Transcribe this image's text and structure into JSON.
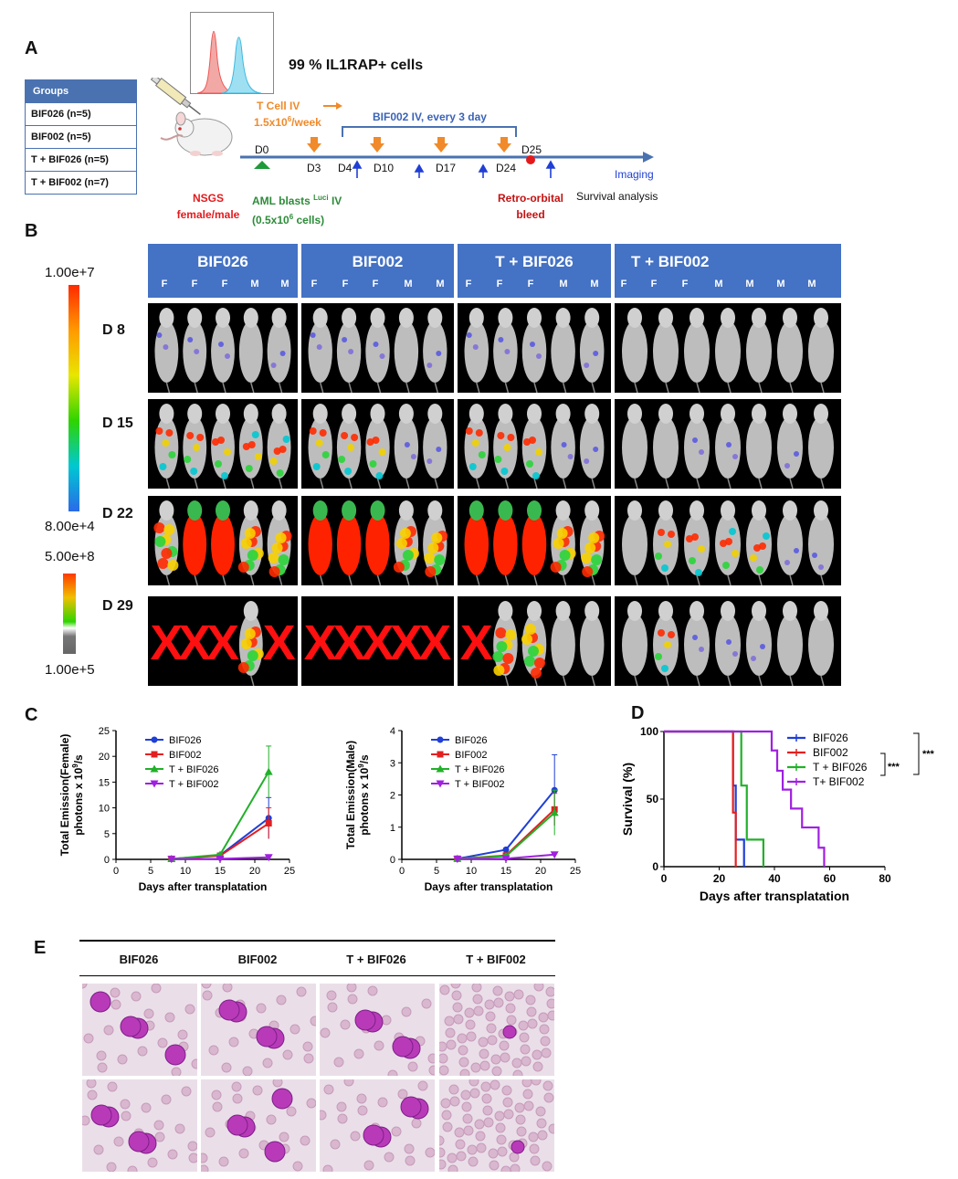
{
  "panels": {
    "a": "A",
    "b": "B",
    "c": "C",
    "d": "D",
    "e": "E"
  },
  "panel_a": {
    "il1rap_text": "99 % IL1RAP+ cells",
    "groups_header": "Groups",
    "groups": [
      "BIF026 (n=5)",
      "BIF002 (n=5)",
      "T + BIF026 (n=5)",
      "T +  BIF002 (n=7)"
    ],
    "tcell_label": "T Cell IV",
    "tcell_dose": "1.5x10",
    "tcell_dose_exp": "6",
    "tcell_dose_unit": "/week",
    "bif_label": "BIF002 IV, every 3 day",
    "days": [
      "D0",
      "D3",
      "D4",
      "D10",
      "D17",
      "D24",
      "D25"
    ],
    "imaging": "Imaging",
    "nsgs_1": "NSGS",
    "nsgs_2": "female/male",
    "aml_1": "AML blasts",
    "aml_sup": "Luci",
    "aml_1b": "IV",
    "aml_2": "(0.5x10",
    "aml_2_sup": "6",
    "aml_2b": " cells)",
    "retro_1": "Retro-orbital",
    "retro_2": "bleed",
    "survival": "Survival analysis",
    "colors": {
      "orange": "#f08a2a",
      "blue": "#3a63b8",
      "red": "#e31a1c",
      "green": "#2e8b3a"
    }
  },
  "panel_b": {
    "scale1_top": "1.00e+7",
    "scale1_bottom": "8.00e+4",
    "scale2_top": "5.00e+8",
    "scale2_bottom": "1.00e+5",
    "groups": [
      {
        "name": "BIF026",
        "sexes": [
          "F",
          "F",
          "F",
          "M",
          "M"
        ]
      },
      {
        "name": "BIF002",
        "sexes": [
          "F",
          "F",
          "F",
          "M",
          "M"
        ]
      },
      {
        "name": "T + BIF026",
        "sexes": [
          "F",
          "F",
          "F",
          "M",
          "M"
        ]
      },
      {
        "name": "T + BIF002",
        "sexes": [
          "F",
          "F",
          "F",
          "M",
          "M",
          "M",
          "M"
        ]
      }
    ],
    "rows": [
      "D 8",
      "D 15",
      "D 22",
      "D 29"
    ],
    "dead_mark": "X"
  },
  "chart_data": [
    {
      "type": "line",
      "title": "",
      "xlabel": "Days after transplatation",
      "ylabel_1": "Total Emission(Female)",
      "ylabel_2": "photons x 10",
      "ylabel_sup": "9",
      "ylabel_3": "/s",
      "xlim": [
        0,
        25
      ],
      "ylim": [
        0,
        25
      ],
      "xticks": [
        0,
        5,
        10,
        15,
        20,
        25
      ],
      "yticks": [
        0,
        5,
        10,
        15,
        20,
        25
      ],
      "x": [
        8,
        15,
        22
      ],
      "series": [
        {
          "name": "BIF026",
          "color": "#1f3fd6",
          "marker": "circle",
          "values": [
            0.1,
            0.8,
            8.0
          ],
          "err": [
            0.1,
            0.3,
            4.0
          ]
        },
        {
          "name": "BIF002",
          "color": "#e32020",
          "marker": "square",
          "values": [
            0.1,
            0.7,
            7.0
          ],
          "err": [
            0.1,
            0.3,
            3.0
          ]
        },
        {
          "name": "T + BIF026",
          "color": "#22b02a",
          "marker": "triangle",
          "values": [
            0.1,
            0.9,
            17.0
          ],
          "err": [
            0.1,
            0.3,
            5.0
          ]
        },
        {
          "name": "T + BIF002",
          "color": "#a020e0",
          "marker": "triangle-down",
          "values": [
            0.05,
            0.1,
            0.4
          ],
          "err": [
            0.0,
            0.05,
            0.2
          ]
        }
      ]
    },
    {
      "type": "line",
      "title": "",
      "xlabel": "Days after transplatation",
      "ylabel_1": "Total Emission(Male)",
      "ylabel_2": "photons x 10",
      "ylabel_sup": "9",
      "ylabel_3": "/s",
      "xlim": [
        0,
        25
      ],
      "ylim": [
        0,
        4
      ],
      "xticks": [
        0,
        5,
        10,
        15,
        20,
        25
      ],
      "yticks": [
        0,
        1,
        2,
        3,
        4
      ],
      "x": [
        8,
        15,
        22
      ],
      "series": [
        {
          "name": "BIF026",
          "color": "#1f3fd6",
          "marker": "circle",
          "values": [
            0.02,
            0.3,
            2.15
          ],
          "err": [
            0.0,
            0.05,
            1.1
          ]
        },
        {
          "name": "BIF002",
          "color": "#e32020",
          "marker": "square",
          "values": [
            0.02,
            0.12,
            1.55
          ],
          "err": [
            0.0,
            0.05,
            0.5
          ]
        },
        {
          "name": "T + BIF026",
          "color": "#22b02a",
          "marker": "triangle",
          "values": [
            0.02,
            0.1,
            1.45
          ],
          "err": [
            0.0,
            0.05,
            0.7
          ]
        },
        {
          "name": "T + BIF002",
          "color": "#a020e0",
          "marker": "triangle-down",
          "values": [
            0.01,
            0.02,
            0.15
          ],
          "err": [
            0.0,
            0.0,
            0.05
          ]
        }
      ]
    },
    {
      "type": "step",
      "xlabel": "Days after transplatation",
      "ylabel": "Survival (%)",
      "xlim": [
        0,
        80
      ],
      "ylim": [
        0,
        100
      ],
      "xticks": [
        0,
        20,
        40,
        60,
        80
      ],
      "yticks": [
        0,
        50,
        100
      ],
      "series": [
        {
          "name": "BIF026",
          "color": "#1f3fd6",
          "steps": [
            [
              0,
              100
            ],
            [
              25,
              100
            ],
            [
              25,
              60
            ],
            [
              26,
              60
            ],
            [
              26,
              20
            ],
            [
              29,
              20
            ],
            [
              29,
              0
            ]
          ]
        },
        {
          "name": "BIF002",
          "color": "#e32020",
          "steps": [
            [
              0,
              100
            ],
            [
              25,
              100
            ],
            [
              25,
              40
            ],
            [
              26,
              40
            ],
            [
              26,
              0
            ]
          ]
        },
        {
          "name": "T + BIF026",
          "color": "#22b02a",
          "steps": [
            [
              0,
              100
            ],
            [
              28,
              100
            ],
            [
              28,
              60
            ],
            [
              30,
              60
            ],
            [
              30,
              20
            ],
            [
              36,
              20
            ],
            [
              36,
              0
            ]
          ]
        },
        {
          "name": "T+ BIF002",
          "color": "#a020e0",
          "steps": [
            [
              0,
              100
            ],
            [
              39,
              100
            ],
            [
              39,
              86
            ],
            [
              41,
              86
            ],
            [
              41,
              71
            ],
            [
              43,
              71
            ],
            [
              43,
              57
            ],
            [
              46,
              57
            ],
            [
              46,
              43
            ],
            [
              50,
              43
            ],
            [
              50,
              29
            ],
            [
              56,
              29
            ],
            [
              56,
              14
            ],
            [
              58,
              14
            ],
            [
              58,
              0
            ]
          ]
        }
      ],
      "significance": [
        "***",
        "***"
      ]
    }
  ],
  "panel_e": {
    "headers": [
      "BIF026",
      "BIF002",
      "T + BIF026",
      "T + BIF002"
    ]
  }
}
